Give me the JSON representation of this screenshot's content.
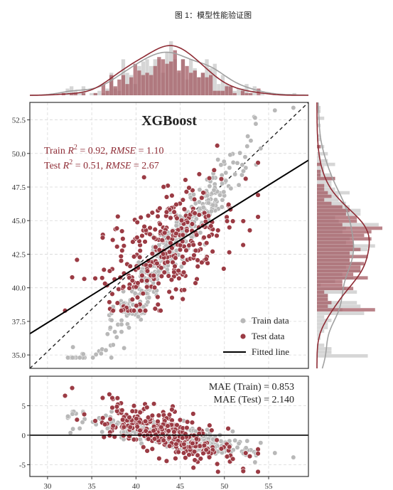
{
  "caption": "图 1：模型性能验证图",
  "colors": {
    "train": "#b8b8b8",
    "test": "#9b3b44",
    "test_stroke": "#ffffff",
    "kde_train": "#a0a0a0",
    "kde_test": "#8e2b34"
  },
  "chart_data": [
    {
      "type": "scatter",
      "panel": "main",
      "title": "XGBoost",
      "train_metric_parts": [
        "Train ",
        "R",
        "2",
        " = 0.92, ",
        "RMSE",
        " = 1.10"
      ],
      "test_metric_parts": [
        "Test ",
        "R",
        "2",
        " = 0.51, ",
        "RMSE",
        " = 2.67"
      ],
      "xlim": [
        28,
        59.5
      ],
      "ylim": [
        34,
        53.8
      ],
      "yticks": [
        35.0,
        37.5,
        40.0,
        42.5,
        45.0,
        47.5,
        50.0,
        52.5
      ],
      "ytick_labels": [
        "35.0",
        "37.5",
        "40.0",
        "42.5",
        "45.0",
        "47.5",
        "50.0",
        "52.5"
      ],
      "xticks": [
        30,
        35,
        40,
        45,
        50,
        55
      ],
      "grid": true,
      "legend_position": "bottom-right",
      "legend": [
        "Train data",
        "Test data",
        "Fitted line"
      ],
      "identity_line": {
        "from": [
          28,
          34
        ],
        "to": [
          59.5,
          53.8
        ],
        "style": "dashed"
      },
      "fitted_line": {
        "intercept": 25.1,
        "slope": 0.41
      },
      "series": [
        {
          "name": "Train data",
          "approx_count": 400,
          "x_range": [
            32,
            58
          ],
          "trend": "y ≈ 0.85x + 5.5"
        },
        {
          "name": "Test data",
          "approx_count": 320,
          "x_range": [
            29,
            54
          ],
          "trend": "y ≈ 0.41x + 25.1"
        }
      ]
    },
    {
      "type": "scatter",
      "panel": "residual",
      "mae_train": "MAE (Train) = 0.853",
      "mae_test": "MAE (Test) = 2.140",
      "xlim": [
        28,
        59.5
      ],
      "ylim": [
        -7,
        10
      ],
      "yticks": [
        -5,
        0,
        5
      ],
      "ytick_labels": [
        "-5",
        "0",
        "5"
      ],
      "xticks": [
        30,
        35,
        40,
        45,
        50,
        55
      ],
      "xtick_labels": [
        "30",
        "35",
        "40",
        "45",
        "50",
        "55"
      ],
      "zero_line": 0,
      "grid": true
    },
    {
      "type": "histogram",
      "panel": "top-marginal",
      "variable": "x",
      "train_peak": 43.5,
      "test_peak": 43.3,
      "kde": true
    },
    {
      "type": "histogram",
      "panel": "right-marginal",
      "variable": "y",
      "train_peak": 43.5,
      "test_peak": 44.0,
      "kde": true
    }
  ]
}
